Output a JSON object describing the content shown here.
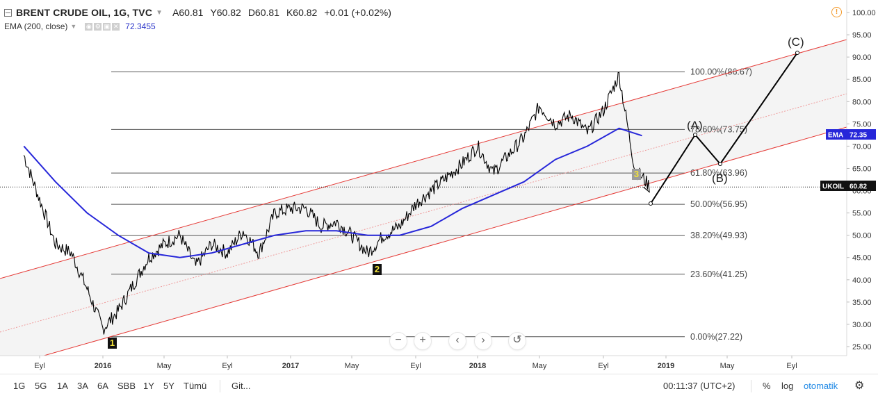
{
  "header": {
    "symbol": "BRENT CRUDE OIL, 1G, TVC",
    "open": "A60.81",
    "high": "Y60.82",
    "low": "D60.81",
    "close": "K60.82",
    "change": "+0.01 (+0.02%)",
    "indicator": "EMA (200, close)",
    "indicator_value": "72.3455"
  },
  "price_axis": {
    "labels": [
      "100.00",
      "95.00",
      "90.00",
      "85.00",
      "80.00",
      "75.00",
      "70.00",
      "65.00",
      "60.00",
      "55.00",
      "50.00",
      "45.00",
      "40.00",
      "35.00",
      "30.00",
      "25.00"
    ],
    "ema_tag": {
      "label": "EMA",
      "value": "72.35"
    },
    "price_tag": {
      "label": "UKOIL",
      "value": "60.82"
    }
  },
  "time_axis": {
    "labels": [
      "Eyl",
      "2016",
      "May",
      "Eyl",
      "2017",
      "May",
      "Eyl",
      "2018",
      "May",
      "Eyl",
      "2019",
      "May",
      "Eyl"
    ]
  },
  "fib_levels": [
    {
      "label": "100.00%(86.67)",
      "price": 86.67
    },
    {
      "label": "78.60%(73.75)",
      "price": 73.75
    },
    {
      "label": "61.80%(63.96)",
      "price": 63.96
    },
    {
      "label": "50.00%(56.95)",
      "price": 56.95
    },
    {
      "label": "38.20%(49.93)",
      "price": 49.93
    },
    {
      "label": "23.60%(41.25)",
      "price": 41.25
    },
    {
      "label": "0.00%(27.22)",
      "price": 27.22
    }
  ],
  "wave_labels": {
    "w1": "1",
    "w2": "2",
    "w3": "3",
    "a": "(A)",
    "b": "(B)",
    "c": "(C)"
  },
  "bottom_bar": {
    "timeframes": [
      "1G",
      "5G",
      "1A",
      "3A",
      "6A",
      "SBB",
      "1Y",
      "5Y",
      "Tümü"
    ],
    "goto": "Git...",
    "clock": "00:11:37 (UTC+2)",
    "percent": "%",
    "log": "log",
    "auto": "otomatik"
  },
  "nav_buttons": [
    "−",
    "+",
    "‹",
    "›",
    "↺"
  ],
  "colors": {
    "price": "#000000",
    "ema": "#2626d9",
    "channel": "#e53935",
    "fib": "#555555",
    "accent": "#1e88e5",
    "marker_bg": "#111111",
    "marker_fg": "#f3e33a"
  },
  "chart_data": {
    "type": "line",
    "title": "BRENT CRUDE OIL, 1G, TVC",
    "ylim": [
      22,
      103
    ],
    "x_range": [
      "2015-08",
      "2019-10"
    ],
    "series": [
      {
        "name": "BRENT CRUDE OIL",
        "x": [
          "2015-08",
          "2015-09",
          "2015-10",
          "2015-11",
          "2015-12",
          "2016-01",
          "2016-02",
          "2016-03",
          "2016-04",
          "2016-05",
          "2016-06",
          "2016-07",
          "2016-08",
          "2016-09",
          "2016-10",
          "2016-11",
          "2016-12",
          "2017-01",
          "2017-02",
          "2017-03",
          "2017-04",
          "2017-05",
          "2017-06",
          "2017-07",
          "2017-08",
          "2017-09",
          "2017-10",
          "2017-11",
          "2017-12",
          "2018-01",
          "2018-02",
          "2018-03",
          "2018-04",
          "2018-05",
          "2018-06",
          "2018-07",
          "2018-08",
          "2018-09",
          "2018-10",
          "2018-11",
          "2018-12"
        ],
        "values": [
          68,
          58,
          48,
          46,
          38,
          29,
          33,
          39,
          45,
          48,
          50,
          43,
          48,
          46,
          51,
          46,
          55,
          56,
          56,
          52,
          53,
          50,
          46,
          50,
          52,
          57,
          60,
          63,
          66,
          70,
          64,
          68,
          72,
          79,
          75,
          77,
          73,
          78,
          86,
          65,
          60.82
        ]
      },
      {
        "name": "EMA (200, close)",
        "x": [
          "2015-08",
          "2015-10",
          "2015-12",
          "2016-02",
          "2016-04",
          "2016-06",
          "2016-08",
          "2016-10",
          "2016-12",
          "2017-02",
          "2017-04",
          "2017-06",
          "2017-08",
          "2017-10",
          "2017-12",
          "2018-02",
          "2018-04",
          "2018-06",
          "2018-08",
          "2018-10",
          "2018-12"
        ],
        "values": [
          70,
          62,
          55,
          50,
          46,
          45,
          46,
          48,
          50,
          51,
          51,
          50,
          50,
          52,
          56,
          59,
          62,
          67,
          70,
          74,
          72.35
        ]
      }
    ]
  }
}
